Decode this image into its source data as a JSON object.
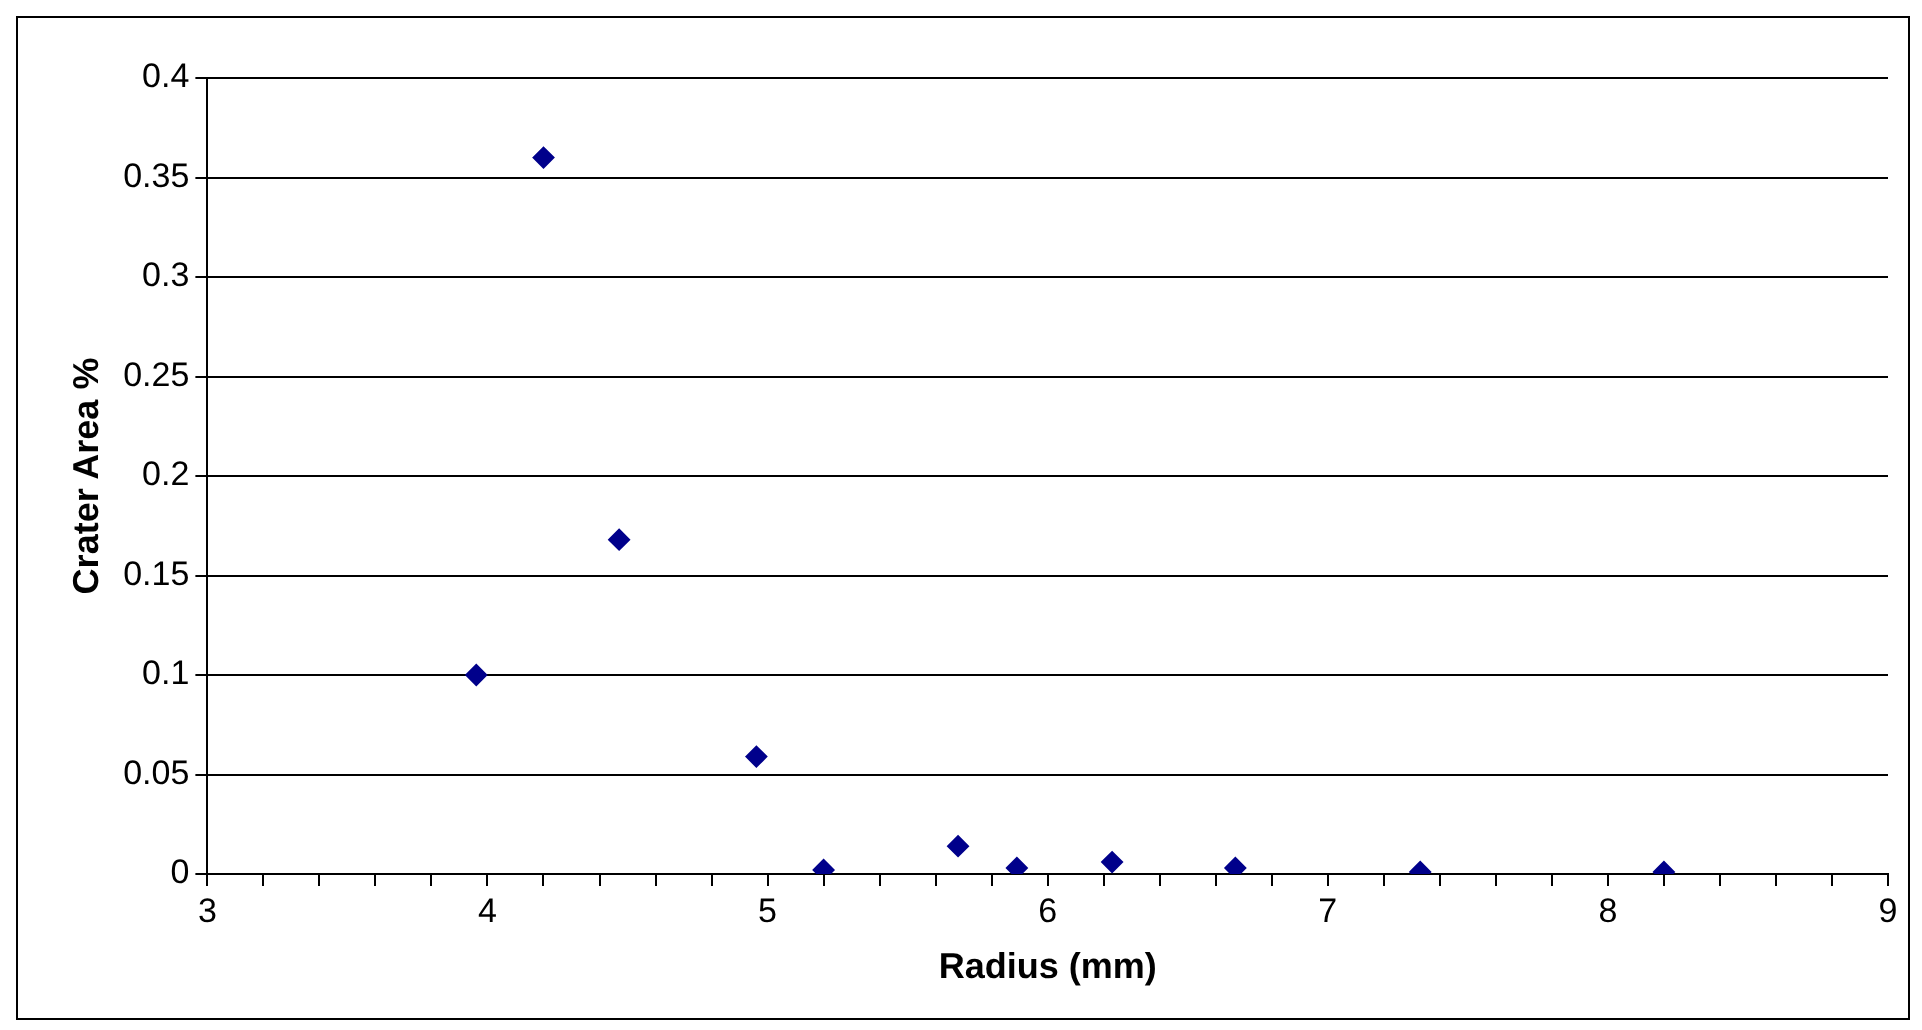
{
  "chart_data": {
    "type": "scatter",
    "xlabel": "Radius (mm)",
    "ylabel": "Crater Area %",
    "series": [
      {
        "color": "#00008b",
        "x": [
          3.96,
          4.2,
          4.47,
          4.96,
          5.2,
          5.68,
          5.89,
          6.23,
          6.67,
          7.33,
          8.2
        ],
        "values": [
          0.1,
          0.36,
          0.168,
          0.059,
          0.002,
          0.014,
          0.003,
          0.006,
          0.003,
          0.001,
          0.001
        ]
      }
    ],
    "xlim": [
      3,
      9
    ],
    "xticks": [
      3,
      {
        "value": 3.2,
        "label": null
      },
      {
        "value": 3.4,
        "label": null
      },
      {
        "value": 3.6,
        "label": null
      },
      {
        "value": 3.8,
        "label": null
      },
      4,
      {
        "value": 4.2,
        "label": null
      },
      {
        "value": 4.4,
        "label": null
      },
      {
        "value": 4.6,
        "label": null
      },
      {
        "value": 4.8,
        "label": null
      },
      5,
      {
        "value": 5.2,
        "label": null
      },
      {
        "value": 5.4,
        "label": null
      },
      {
        "value": 5.6,
        "label": null
      },
      {
        "value": 5.8,
        "label": null
      },
      6,
      {
        "value": 6.2,
        "label": null
      },
      {
        "value": 6.4,
        "label": null
      },
      {
        "value": 6.6,
        "label": null
      },
      {
        "value": 6.8,
        "label": null
      },
      7,
      {
        "value": 7.2,
        "label": null
      },
      {
        "value": 7.4,
        "label": null
      },
      {
        "value": 7.6,
        "label": null
      },
      {
        "value": 7.8,
        "label": null
      },
      8,
      {
        "value": 8.2,
        "label": null
      },
      {
        "value": 8.4,
        "label": null
      },
      {
        "value": 8.6,
        "label": null
      },
      {
        "value": 8.8,
        "label": null
      },
      9
    ],
    "ylim": [
      0,
      0.4
    ],
    "yticks": [
      0,
      0.05,
      0.1,
      0.15,
      0.2,
      0.25,
      0.3,
      0.35,
      0.4
    ],
    "grid": "y",
    "legend": false,
    "marker": "diamond"
  }
}
